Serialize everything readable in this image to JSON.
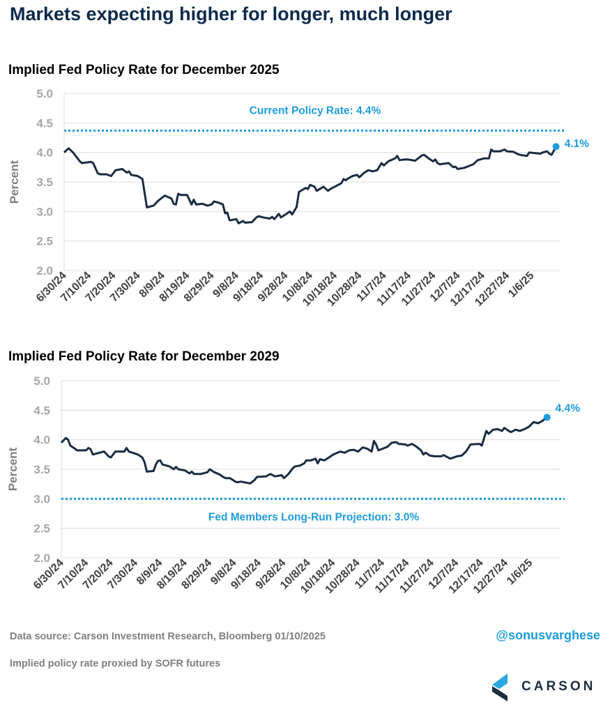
{
  "headline": "Markets expecting higher for longer, much longer",
  "chart_data": [
    {
      "type": "line",
      "title": "Implied Fed Policy Rate for December 2025",
      "ylabel": "Percent",
      "ylim": [
        2.0,
        5.0
      ],
      "yticks": [
        "2.0",
        "2.5",
        "3.0",
        "3.5",
        "4.0",
        "4.5",
        "5.0"
      ],
      "xticks": [
        "6/30/24",
        "7/10/24",
        "7/20/24",
        "7/30/24",
        "8/9/24",
        "8/19/24",
        "8/29/24",
        "9/8/24",
        "9/18/24",
        "9/28/24",
        "10/8/24",
        "10/18/24",
        "10/28/24",
        "11/7/24",
        "11/17/24",
        "11/27/24",
        "12/7/24",
        "12/17/24",
        "12/27/24",
        "1/6/25"
      ],
      "x_range": [
        "6/30/24",
        "1/10/25"
      ],
      "grid": "horizontal",
      "reference_line": {
        "value": 4.37,
        "label": "Current Policy Rate: 4.4%",
        "color": "#1f9cdc",
        "label_pos": "above"
      },
      "end_label": "4.1%",
      "line_color": "#1a2b40",
      "series": [
        {
          "values": [
            [
              0,
              4.0
            ],
            [
              2,
              4.07
            ],
            [
              4,
              4.0
            ],
            [
              7,
              3.85
            ],
            [
              8,
              3.82
            ],
            [
              12,
              3.84
            ],
            [
              13,
              3.82
            ],
            [
              15,
              3.65
            ],
            [
              16,
              3.63
            ],
            [
              19,
              3.63
            ],
            [
              21,
              3.6
            ],
            [
              23,
              3.7
            ],
            [
              26,
              3.72
            ],
            [
              28,
              3.66
            ],
            [
              29,
              3.68
            ],
            [
              30,
              3.62
            ],
            [
              33,
              3.6
            ],
            [
              35,
              3.55
            ],
            [
              37,
              3.07
            ],
            [
              40,
              3.1
            ],
            [
              42,
              3.18
            ],
            [
              45,
              3.27
            ],
            [
              48,
              3.22
            ],
            [
              49,
              3.13
            ],
            [
              50,
              3.12
            ],
            [
              51,
              3.3
            ],
            [
              52,
              3.28
            ],
            [
              55,
              3.28
            ],
            [
              57,
              3.12
            ],
            [
              58,
              3.2
            ],
            [
              59,
              3.12
            ],
            [
              62,
              3.13
            ],
            [
              64,
              3.1
            ],
            [
              66,
              3.12
            ],
            [
              67,
              3.17
            ],
            [
              69,
              3.15
            ],
            [
              71,
              3.12
            ],
            [
              72,
              2.97
            ],
            [
              73,
              2.98
            ],
            [
              74,
              2.85
            ],
            [
              77,
              2.87
            ],
            [
              78,
              2.8
            ],
            [
              80,
              2.84
            ],
            [
              81,
              2.81
            ],
            [
              84,
              2.82
            ],
            [
              86,
              2.9
            ],
            [
              87,
              2.92
            ],
            [
              89,
              2.9
            ],
            [
              92,
              2.88
            ],
            [
              93,
              2.91
            ],
            [
              94,
              2.87
            ],
            [
              96,
              2.96
            ],
            [
              97,
              2.9
            ],
            [
              99,
              2.95
            ],
            [
              101,
              3.0
            ],
            [
              102,
              2.95
            ],
            [
              104,
              3.08
            ],
            [
              105,
              3.33
            ],
            [
              108,
              3.4
            ],
            [
              109,
              3.38
            ],
            [
              110,
              3.45
            ],
            [
              112,
              3.42
            ],
            [
              113,
              3.35
            ],
            [
              116,
              3.42
            ],
            [
              118,
              3.35
            ],
            [
              119,
              3.38
            ],
            [
              121,
              3.42
            ],
            [
              124,
              3.48
            ],
            [
              125,
              3.55
            ],
            [
              126,
              3.53
            ],
            [
              127,
              3.56
            ],
            [
              129,
              3.6
            ],
            [
              131,
              3.62
            ],
            [
              132,
              3.58
            ],
            [
              134,
              3.65
            ],
            [
              136,
              3.7
            ],
            [
              138,
              3.68
            ],
            [
              140,
              3.7
            ],
            [
              142,
              3.82
            ],
            [
              143,
              3.78
            ],
            [
              145,
              3.85
            ],
            [
              148,
              3.9
            ],
            [
              149,
              3.94
            ],
            [
              150,
              3.87
            ],
            [
              152,
              3.88
            ],
            [
              154,
              3.88
            ],
            [
              157,
              3.86
            ],
            [
              160,
              3.95
            ],
            [
              161,
              3.96
            ],
            [
              163,
              3.9
            ],
            [
              165,
              3.85
            ],
            [
              166,
              3.88
            ],
            [
              167,
              3.82
            ],
            [
              168,
              3.8
            ],
            [
              172,
              3.82
            ],
            [
              174,
              3.75
            ],
            [
              175,
              3.76
            ],
            [
              176,
              3.72
            ],
            [
              179,
              3.74
            ],
            [
              181,
              3.77
            ],
            [
              183,
              3.8
            ],
            [
              185,
              3.87
            ],
            [
              188,
              3.9
            ],
            [
              190,
              3.9
            ],
            [
              191,
              4.05
            ],
            [
              192,
              4.02
            ],
            [
              195,
              4.02
            ],
            [
              197,
              4.05
            ],
            [
              198,
              4.02
            ],
            [
              201,
              4.01
            ],
            [
              203,
              3.97
            ],
            [
              204,
              3.96
            ],
            [
              207,
              3.94
            ],
            [
              208,
              4.0
            ],
            [
              213,
              3.98
            ],
            [
              214,
              4.0
            ],
            [
              216,
              4.02
            ],
            [
              217,
              3.98
            ],
            [
              218,
              3.96
            ],
            [
              220,
              4.1
            ]
          ]
        }
      ]
    },
    {
      "type": "line",
      "title": "Implied Fed Policy Rate for December 2029",
      "ylabel": "Percent",
      "ylim": [
        2.0,
        5.0
      ],
      "yticks": [
        "2.0",
        "2.5",
        "3.0",
        "3.5",
        "4.0",
        "4.5",
        "5.0"
      ],
      "xticks": [
        "6/30/24",
        "7/10/24",
        "7/20/24",
        "7/30/24",
        "8/9/24",
        "8/19/24",
        "8/29/24",
        "9/8/24",
        "9/18/24",
        "9/28/24",
        "10/8/24",
        "10/18/24",
        "10/28/24",
        "11/7/24",
        "11/17/24",
        "11/27/24",
        "12/7/24",
        "12/17/24",
        "12/27/24",
        "1/6/25"
      ],
      "x_range": [
        "6/30/24",
        "1/10/25"
      ],
      "grid": "horizontal",
      "reference_line": {
        "value": 3.0,
        "label": "Fed Members Long-Run Projection:  3.0%",
        "color": "#1f9cdc",
        "label_pos": "below"
      },
      "end_label": "4.4%",
      "line_color": "#1a2b40",
      "series": [
        {
          "values": [
            [
              0,
              3.95
            ],
            [
              2,
              4.03
            ],
            [
              3,
              4.0
            ],
            [
              4,
              3.9
            ],
            [
              6,
              3.85
            ],
            [
              7,
              3.82
            ],
            [
              11,
              3.82
            ],
            [
              12,
              3.86
            ],
            [
              13,
              3.84
            ],
            [
              14,
              3.75
            ],
            [
              17,
              3.78
            ],
            [
              19,
              3.8
            ],
            [
              21,
              3.72
            ],
            [
              22,
              3.7
            ],
            [
              24,
              3.8
            ],
            [
              28,
              3.8
            ],
            [
              29,
              3.86
            ],
            [
              30,
              3.8
            ],
            [
              34,
              3.75
            ],
            [
              36,
              3.7
            ],
            [
              37,
              3.62
            ],
            [
              38,
              3.46
            ],
            [
              41,
              3.47
            ],
            [
              42,
              3.58
            ],
            [
              43,
              3.64
            ],
            [
              44,
              3.65
            ],
            [
              45,
              3.58
            ],
            [
              48,
              3.55
            ],
            [
              50,
              3.5
            ],
            [
              51,
              3.54
            ],
            [
              52,
              3.5
            ],
            [
              55,
              3.48
            ],
            [
              57,
              3.43
            ],
            [
              58,
              3.46
            ],
            [
              59,
              3.42
            ],
            [
              62,
              3.42
            ],
            [
              65,
              3.45
            ],
            [
              66,
              3.5
            ],
            [
              68,
              3.45
            ],
            [
              70,
              3.42
            ],
            [
              72,
              3.37
            ],
            [
              73,
              3.35
            ],
            [
              75,
              3.35
            ],
            [
              77,
              3.3
            ],
            [
              78,
              3.28
            ],
            [
              80,
              3.29
            ],
            [
              84,
              3.26
            ],
            [
              86,
              3.32
            ],
            [
              87,
              3.37
            ],
            [
              91,
              3.38
            ],
            [
              93,
              3.42
            ],
            [
              95,
              3.38
            ],
            [
              98,
              3.4
            ],
            [
              99,
              3.35
            ],
            [
              101,
              3.42
            ],
            [
              103,
              3.52
            ],
            [
              104,
              3.55
            ],
            [
              106,
              3.56
            ],
            [
              108,
              3.6
            ],
            [
              109,
              3.65
            ],
            [
              111,
              3.65
            ],
            [
              113,
              3.68
            ],
            [
              114,
              3.6
            ],
            [
              115,
              3.67
            ],
            [
              117,
              3.65
            ],
            [
              119,
              3.7
            ],
            [
              121,
              3.75
            ],
            [
              124,
              3.8
            ],
            [
              126,
              3.78
            ],
            [
              128,
              3.82
            ],
            [
              130,
              3.83
            ],
            [
              132,
              3.8
            ],
            [
              134,
              3.87
            ],
            [
              136,
              3.85
            ],
            [
              138,
              3.8
            ],
            [
              139,
              3.98
            ],
            [
              140,
              3.92
            ],
            [
              141,
              3.82
            ],
            [
              143,
              3.85
            ],
            [
              145,
              3.88
            ],
            [
              147,
              3.95
            ],
            [
              149,
              3.96
            ],
            [
              150,
              3.93
            ],
            [
              153,
              3.92
            ],
            [
              154,
              3.9
            ],
            [
              156,
              3.93
            ],
            [
              158,
              3.88
            ],
            [
              160,
              3.82
            ],
            [
              161,
              3.75
            ],
            [
              162,
              3.78
            ],
            [
              164,
              3.73
            ],
            [
              166,
              3.72
            ],
            [
              169,
              3.72
            ],
            [
              170,
              3.74
            ],
            [
              172,
              3.7
            ],
            [
              173,
              3.68
            ],
            [
              176,
              3.72
            ],
            [
              178,
              3.73
            ],
            [
              180,
              3.8
            ],
            [
              182,
              3.92
            ],
            [
              186,
              3.93
            ],
            [
              187,
              3.9
            ],
            [
              189,
              4.15
            ],
            [
              190,
              4.1
            ],
            [
              192,
              4.17
            ],
            [
              194,
              4.18
            ],
            [
              196,
              4.15
            ],
            [
              197,
              4.2
            ],
            [
              199,
              4.15
            ],
            [
              200,
              4.13
            ],
            [
              202,
              4.17
            ],
            [
              204,
              4.15
            ],
            [
              206,
              4.18
            ],
            [
              208,
              4.22
            ],
            [
              210,
              4.3
            ],
            [
              212,
              4.28
            ],
            [
              214,
              4.32
            ],
            [
              216,
              4.38
            ]
          ]
        }
      ]
    }
  ],
  "footer": {
    "source": "Data source: Carson Investment Research, Bloomberg    01/10/2025",
    "note": "Implied policy rate proxied by SOFR futures",
    "handle": "@sonusvarghese",
    "logo_text": "CARSON"
  }
}
